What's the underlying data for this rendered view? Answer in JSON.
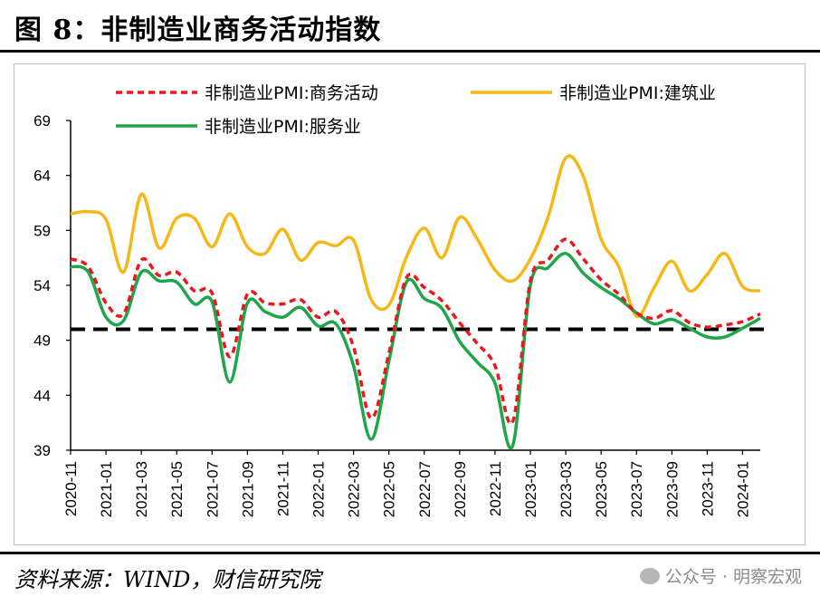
{
  "title": "图 8：非制造业商务活动指数",
  "source": "资料来源：WIND，财信研究院",
  "watermark": "公众号 · 明察宏观",
  "chart_data": {
    "type": "line",
    "ylim": [
      39,
      69
    ],
    "yticks": [
      39,
      44,
      49,
      54,
      59,
      64,
      69
    ],
    "reference_line": 50,
    "xtick_labels": [
      "2020-11",
      "2021-01",
      "2021-03",
      "2021-05",
      "2021-07",
      "2021-09",
      "2021-11",
      "2022-01",
      "2022-03",
      "2022-05",
      "2022-07",
      "2022-09",
      "2022-11",
      "2023-01",
      "2023-03",
      "2023-05",
      "2023-07",
      "2023-09",
      "2023-11",
      "2024-01"
    ],
    "x": [
      "2020-11",
      "2020-12",
      "2021-01",
      "2021-02",
      "2021-03",
      "2021-04",
      "2021-05",
      "2021-06",
      "2021-07",
      "2021-08",
      "2021-09",
      "2021-10",
      "2021-11",
      "2021-12",
      "2022-01",
      "2022-02",
      "2022-03",
      "2022-04",
      "2022-05",
      "2022-06",
      "2022-07",
      "2022-08",
      "2022-09",
      "2022-10",
      "2022-11",
      "2022-12",
      "2023-01",
      "2023-02",
      "2023-03",
      "2023-04",
      "2023-05",
      "2023-06",
      "2023-07",
      "2023-08",
      "2023-09",
      "2023-10",
      "2023-11",
      "2023-12",
      "2024-01",
      "2024-02"
    ],
    "series": [
      {
        "name": "非制造业PMI:商务活动",
        "color": "#e8191c",
        "style": "dashed",
        "values": [
          56.4,
          55.7,
          52.4,
          51.4,
          56.3,
          54.9,
          55.2,
          53.5,
          53.3,
          47.5,
          53.2,
          52.4,
          52.3,
          52.7,
          51.1,
          51.6,
          48.4,
          41.9,
          47.8,
          54.7,
          53.8,
          52.6,
          50.6,
          48.7,
          46.7,
          41.6,
          54.4,
          56.3,
          58.2,
          56.4,
          54.5,
          53.2,
          51.5,
          51.0,
          51.7,
          50.6,
          50.2,
          50.4,
          50.7,
          51.4
        ]
      },
      {
        "name": "非制造业PMI:建筑业",
        "color": "#f5b818",
        "style": "solid",
        "values": [
          60.5,
          60.7,
          60.0,
          55.2,
          62.3,
          57.4,
          60.1,
          60.1,
          57.5,
          60.5,
          57.5,
          56.9,
          59.1,
          56.3,
          57.9,
          57.6,
          58.1,
          52.7,
          52.2,
          56.6,
          59.2,
          56.5,
          60.2,
          58.2,
          55.4,
          54.4,
          56.4,
          60.2,
          65.6,
          63.9,
          58.2,
          55.7,
          51.2,
          53.8,
          56.2,
          53.5,
          55.0,
          56.9,
          53.9,
          53.5
        ]
      },
      {
        "name": "非制造业PMI:服务业",
        "color": "#1fa64b",
        "style": "solid",
        "values": [
          55.7,
          55.2,
          51.1,
          50.8,
          55.2,
          54.4,
          54.3,
          52.3,
          52.5,
          45.2,
          52.4,
          51.6,
          51.1,
          52.0,
          50.3,
          50.5,
          46.7,
          40.0,
          47.1,
          54.3,
          52.8,
          51.9,
          48.9,
          47.0,
          45.1,
          39.4,
          54.0,
          55.6,
          56.9,
          55.1,
          53.8,
          52.8,
          51.5,
          50.5,
          50.9,
          50.1,
          49.3,
          49.3,
          50.1,
          51.0
        ]
      }
    ]
  }
}
